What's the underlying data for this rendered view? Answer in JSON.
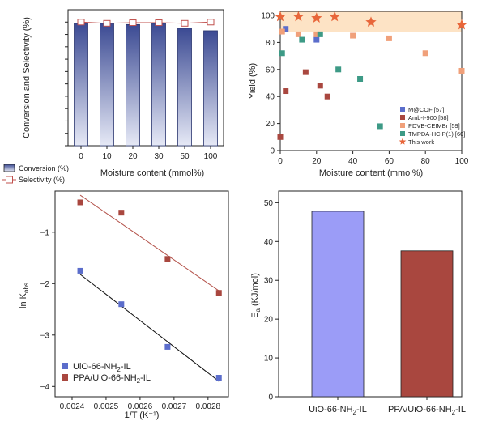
{
  "chart_data": [
    {
      "type": "bar",
      "panel": "top-left",
      "ylabel": "Conversion and Selectivity (%)",
      "xlabel": "Moisture content (mmol%)",
      "xtick_labels": [
        "0",
        "10",
        "20",
        "30",
        "50",
        "100"
      ],
      "ylim": [
        0,
        110
      ],
      "yticks": [
        0,
        10,
        20,
        30,
        40,
        50,
        60,
        70,
        80,
        90,
        100
      ],
      "series": [
        {
          "name": "Conversion (%)",
          "kind": "bar",
          "values": [
            99,
            99,
            98,
            99,
            95,
            93
          ]
        },
        {
          "name": "Selectivity (%)",
          "kind": "line-marker",
          "values": [
            100,
            99,
            99.5,
            99.5,
            99,
            100
          ]
        }
      ],
      "colors": {
        "bar_top": "#3b4a93",
        "bar_bottom": "#e6e9f6",
        "line": "#c0504d"
      }
    },
    {
      "type": "scatter",
      "panel": "top-right",
      "ylabel": "Yield (%)",
      "xlabel": "Moisture content (mmol%)",
      "xlim": [
        0,
        100
      ],
      "ylim": [
        0,
        103
      ],
      "xticks": [
        0,
        20,
        40,
        60,
        80,
        100
      ],
      "yticks": [
        0,
        20,
        40,
        60,
        80,
        100
      ],
      "band": [
        88,
        103
      ],
      "series": [
        {
          "name": "M@COF [57]",
          "marker": "square",
          "color": "#5b6dcb",
          "points": [
            [
              3,
              90
            ],
            [
              20,
              82
            ]
          ]
        },
        {
          "name": "Amb-I-900 [58]",
          "marker": "square",
          "color": "#a9473f",
          "points": [
            [
              0,
              10
            ],
            [
              3,
              44
            ],
            [
              14,
              58
            ],
            [
              22,
              48
            ],
            [
              26,
              40
            ]
          ]
        },
        {
          "name": "PDVB-CEIMBr [59]",
          "marker": "square",
          "color": "#f0a07a",
          "points": [
            [
              1,
              88
            ],
            [
              10,
              86
            ],
            [
              20,
              86
            ],
            [
              40,
              85
            ],
            [
              60,
              83
            ],
            [
              80,
              72
            ],
            [
              100,
              59
            ]
          ]
        },
        {
          "name": "TMPDA-HCIP(1) [60]",
          "marker": "square",
          "color": "#3d9a86",
          "points": [
            [
              1,
              72
            ],
            [
              12,
              82
            ],
            [
              22,
              86
            ],
            [
              32,
              60
            ],
            [
              44,
              53
            ],
            [
              55,
              18
            ]
          ]
        },
        {
          "name": "This work",
          "marker": "star",
          "color": "#e8663a",
          "points": [
            [
              0,
              99
            ],
            [
              10,
              99
            ],
            [
              20,
              98
            ],
            [
              30,
              99
            ],
            [
              50,
              95
            ],
            [
              100,
              93
            ]
          ]
        }
      ]
    },
    {
      "type": "scatter",
      "panel": "bottom-left",
      "ylabel": "ln K",
      "ylabel_sub": "obs",
      "xlabel": "1/T (K⁻¹)",
      "xlim": [
        0.00235,
        0.00286
      ],
      "ylim": [
        -4.2,
        -0.2
      ],
      "xtick_labels": [
        "0.0024",
        "0.0025",
        "0.0026",
        "0.0027",
        "0.0028"
      ],
      "xticks": [
        0.0024,
        0.0025,
        0.0026,
        0.0027,
        0.0028
      ],
      "ytick_labels": [
        "−1",
        "−2",
        "−3",
        "−4"
      ],
      "yticks": [
        -1,
        -2,
        -3,
        -4
      ],
      "series": [
        {
          "name": "UiO-66-NH2-IL",
          "label_main": "UiO-66-NH",
          "label_sub": "2",
          "label_tail": "-IL",
          "color": "#5b6dcb",
          "line": "#111111",
          "points": [
            [
              0.002424,
              -1.75
            ],
            [
              0.002545,
              -2.4
            ],
            [
              0.002681,
              -3.23
            ],
            [
              0.002832,
              -3.83
            ]
          ],
          "fit": [
            [
              0.002424,
              -1.82
            ],
            [
              0.002832,
              -3.9
            ]
          ]
        },
        {
          "name": "PPA/UiO-66-NH2-IL",
          "label_main": "PPA/UiO-66-NH",
          "label_sub": "2",
          "label_tail": "-IL",
          "color": "#a9473f",
          "line": "#b4534b",
          "points": [
            [
              0.002424,
              -0.42
            ],
            [
              0.002545,
              -0.62
            ],
            [
              0.002681,
              -1.52
            ],
            [
              0.002832,
              -2.18
            ]
          ],
          "fit": [
            [
              0.002424,
              -0.28
            ],
            [
              0.002832,
              -2.14
            ]
          ]
        }
      ]
    },
    {
      "type": "bar",
      "panel": "bottom-right",
      "ylabel": "E",
      "ylabel_sub": "a",
      "ylabel_tail": " (KJ/mol)",
      "ylim": [
        0,
        53
      ],
      "yticks": [
        0,
        10,
        20,
        30,
        40,
        50
      ],
      "categories": [
        {
          "main": "UiO-66-NH",
          "sub": "2",
          "tail": "-IL"
        },
        {
          "main": "PPA/UiO-66-NH",
          "sub": "2",
          "tail": "-IL"
        }
      ],
      "values": [
        47.8,
        37.6
      ],
      "colors": [
        "#9b9cf7",
        "#a9473f"
      ]
    }
  ]
}
